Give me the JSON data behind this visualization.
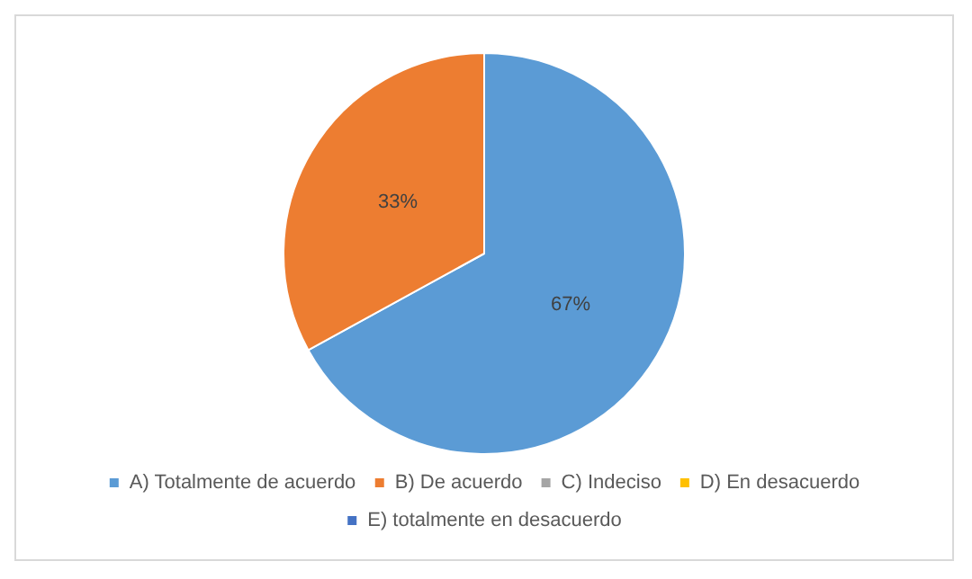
{
  "chart_data": {
    "type": "pie",
    "categories": [
      "A) Totalmente de acuerdo",
      "B) De acuerdo",
      "C) Indeciso",
      "D) En desacuerdo",
      "E) totalmente en desacuerdo"
    ],
    "values": [
      67,
      33,
      0,
      0,
      0
    ],
    "colors": [
      "#5b9bd5",
      "#ed7d31",
      "#a5a5a5",
      "#ffc000",
      "#4472c4"
    ],
    "value_labels": [
      "67%",
      "33%",
      null,
      null,
      null
    ],
    "legend": "bottom"
  }
}
